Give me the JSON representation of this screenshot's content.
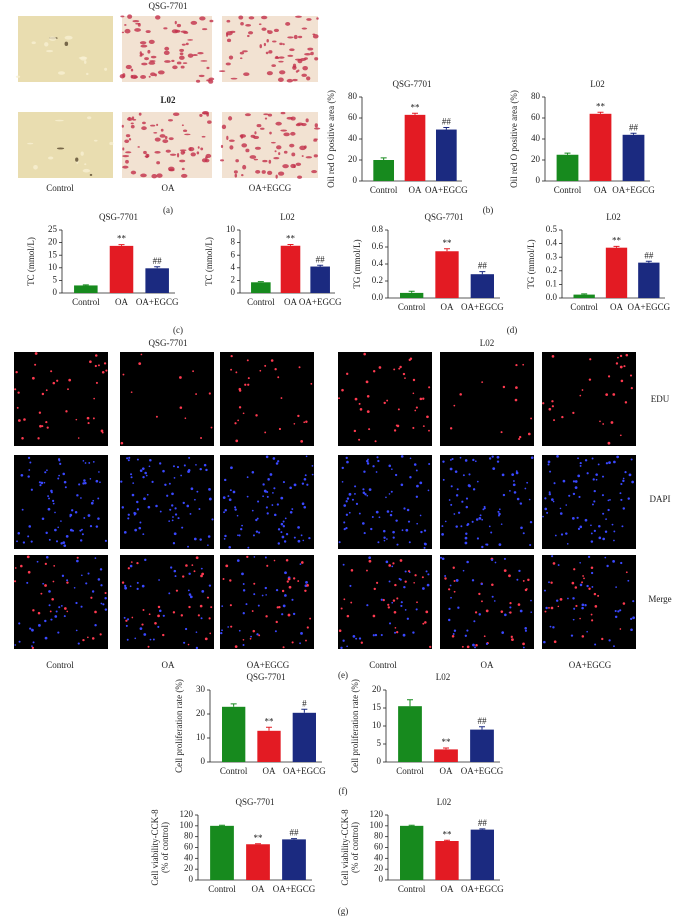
{
  "panel_labels": [
    "(a)",
    "(b)",
    "(c)",
    "(d)",
    "(e)",
    "(f)",
    "(g)"
  ],
  "images": {
    "a": {
      "titles": [
        "QSG-7701",
        "L02"
      ],
      "columns": [
        "Control",
        "OA",
        "OA+EGCG"
      ]
    },
    "e": {
      "titles": [
        "QSG-7701",
        "L02"
      ],
      "columns": [
        "Control",
        "OA",
        "OA+EGCG"
      ],
      "rows": [
        "EDU",
        "DAPI",
        "Merge"
      ]
    }
  },
  "chart_data": [
    {
      "type": "bar",
      "title": "QSG-7701",
      "y_label": "Oil red O positive area (%)",
      "categories": [
        "Control",
        "OA",
        "OA+EGCG"
      ],
      "values": [
        20,
        63,
        49
      ],
      "errors": [
        2,
        1.5,
        2
      ],
      "annotations": [
        null,
        "**",
        "##"
      ],
      "colors": [
        "#178a1e",
        "#e31b23",
        "#1b2a80"
      ],
      "ylim": [
        0,
        80
      ],
      "yticks": [
        0,
        20,
        40,
        60,
        80
      ]
    },
    {
      "type": "bar",
      "title": "L02",
      "y_label": "Oil red O positive area (%)",
      "categories": [
        "Control",
        "OA",
        "OA+EGCG"
      ],
      "values": [
        25,
        64,
        44
      ],
      "errors": [
        1.5,
        1.5,
        1.5
      ],
      "annotations": [
        null,
        "**",
        "##"
      ],
      "colors": [
        "#178a1e",
        "#e31b23",
        "#1b2a80"
      ],
      "ylim": [
        0,
        80
      ],
      "yticks": [
        0,
        20,
        40,
        60,
        80
      ]
    },
    {
      "type": "bar",
      "title": "QSG-7701",
      "y_label": "TC (mmol/L)",
      "categories": [
        "Control",
        "OA",
        "OA+EGCG"
      ],
      "values": [
        3,
        18.7,
        9.8
      ],
      "errors": [
        0.2,
        0.5,
        0.6
      ],
      "annotations": [
        null,
        "**",
        "##"
      ],
      "colors": [
        "#178a1e",
        "#e31b23",
        "#1b2a80"
      ],
      "ylim": [
        0,
        25
      ],
      "yticks": [
        0,
        5,
        10,
        15,
        20,
        25
      ]
    },
    {
      "type": "bar",
      "title": "L02",
      "y_label": "TC (mmol/L)",
      "categories": [
        "Control",
        "OA",
        "OA+EGCG"
      ],
      "values": [
        1.7,
        7.5,
        4.2
      ],
      "errors": [
        0.1,
        0.2,
        0.2
      ],
      "annotations": [
        null,
        "**",
        "##"
      ],
      "colors": [
        "#178a1e",
        "#e31b23",
        "#1b2a80"
      ],
      "ylim": [
        0,
        10
      ],
      "yticks": [
        0,
        2,
        4,
        6,
        8,
        10
      ]
    },
    {
      "type": "bar",
      "title": "QSG-7701",
      "y_label": "TG (mmol/L)",
      "categories": [
        "Control",
        "OA",
        "OA+EGCG"
      ],
      "values": [
        0.06,
        0.55,
        0.28
      ],
      "errors": [
        0.02,
        0.03,
        0.03
      ],
      "annotations": [
        null,
        "**",
        "##"
      ],
      "colors": [
        "#178a1e",
        "#e31b23",
        "#1b2a80"
      ],
      "ylim": [
        0,
        0.8
      ],
      "yticks": [
        {
          "value": 0,
          "label": "0.0"
        },
        0.2,
        0.4,
        0.6,
        0.8
      ]
    },
    {
      "type": "bar",
      "title": "L02",
      "y_label": "TG (mmol/L)",
      "categories": [
        "Control",
        "OA",
        "OA+EGCG"
      ],
      "values": [
        0.025,
        0.37,
        0.26
      ],
      "errors": [
        0.005,
        0.01,
        0.01
      ],
      "annotations": [
        null,
        "**",
        "##"
      ],
      "colors": [
        "#178a1e",
        "#e31b23",
        "#1b2a80"
      ],
      "ylim": [
        0,
        0.5
      ],
      "yticks": [
        {
          "value": 0,
          "label": "0.0"
        },
        0.1,
        0.2,
        0.3,
        0.4,
        0.5
      ]
    },
    {
      "type": "bar",
      "title": "QSG-7701",
      "y_label": "Cell proliferation rate (%)",
      "categories": [
        "Control",
        "OA",
        "OA+EGCG"
      ],
      "values": [
        23,
        13,
        20.5
      ],
      "errors": [
        1.2,
        1.5,
        1.5
      ],
      "annotations": [
        null,
        "**",
        "#"
      ],
      "colors": [
        "#178a1e",
        "#e31b23",
        "#1b2a80"
      ],
      "ylim": [
        0,
        30
      ],
      "yticks": [
        0,
        10,
        20,
        30
      ]
    },
    {
      "type": "bar",
      "title": "L02",
      "y_label": "Cell proliferation rate (%)",
      "categories": [
        "Control",
        "OA",
        "OA+EGCG"
      ],
      "values": [
        15.5,
        3.5,
        9
      ],
      "errors": [
        1.8,
        0.4,
        0.8
      ],
      "annotations": [
        null,
        "**",
        "##"
      ],
      "colors": [
        "#178a1e",
        "#e31b23",
        "#1b2a80"
      ],
      "ylim": [
        0,
        20
      ],
      "yticks": [
        0,
        5,
        10,
        15,
        20
      ]
    },
    {
      "type": "bar",
      "title": "QSG-7701",
      "y_label": [
        "Cell viability-CCK-8",
        "(% of control)"
      ],
      "categories": [
        "Control",
        "OA",
        "OA+EGCG"
      ],
      "values": [
        100,
        66,
        75
      ],
      "errors": [
        1,
        1,
        1.5
      ],
      "annotations": [
        null,
        "**",
        "##"
      ],
      "colors": [
        "#178a1e",
        "#e31b23",
        "#1b2a80"
      ],
      "ylim": [
        0,
        120
      ],
      "yticks": [
        0,
        20,
        40,
        60,
        80,
        100,
        120
      ]
    },
    {
      "type": "bar",
      "title": "L02",
      "y_label": [
        "Cell viability-CCK-8",
        "(% of control)"
      ],
      "categories": [
        "Control",
        "OA",
        "OA+EGCG"
      ],
      "values": [
        100,
        72,
        93
      ],
      "errors": [
        1,
        1.5,
        1.5
      ],
      "annotations": [
        null,
        "**",
        "##"
      ],
      "colors": [
        "#178a1e",
        "#e31b23",
        "#1b2a80"
      ],
      "ylim": [
        0,
        120
      ],
      "yticks": [
        0,
        20,
        40,
        60,
        80,
        100,
        120
      ]
    }
  ]
}
